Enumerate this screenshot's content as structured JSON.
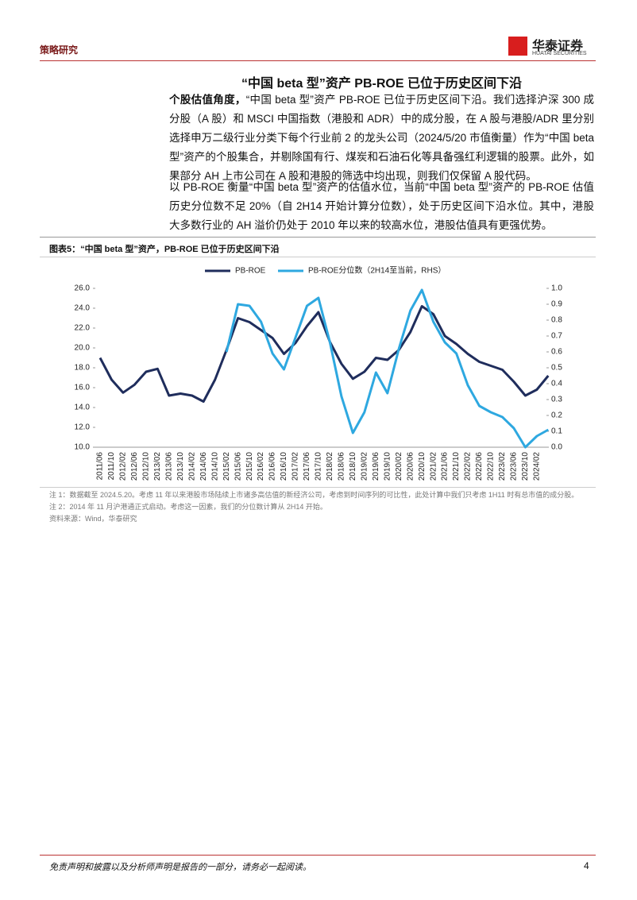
{
  "header": {
    "section": "策略研究",
    "logo_cn": "华泰证券",
    "logo_en": "HUATAI SECURITIES"
  },
  "heading": "“中国 beta 型”资产 PB-ROE 已位于历史区间下沿",
  "paragraphs": [
    {
      "lead": "个股估值角度，",
      "text": "“中国 beta 型”资产 PB-ROE 已位于历史区间下沿。我们选择沪深 300 成分股（A 股）和 MSCI 中国指数（港股和 ADR）中的成分股，在 A 股与港股/ADR 里分别选择申万二级行业分类下每个行业前 2 的龙头公司（2024/5/20 市值衡量）作为“中国 beta 型”资产的个股集合，并剔除国有行、煤炭和石油石化等具备强红利逻辑的股票。此外，如果部分 AH 上市公司在 A 股和港股的筛选中均出现，则我们仅保留 A 股代码。"
    },
    {
      "text": "以 PB-ROE 衡量“中国 beta 型”资产的估值水位，当前“中国 beta 型”资产的 PB-ROE 估值历史分位数不足 20%（自 2H14 开始计算分位数），处于历史区间下沿水位。其中，港股大多数行业的 AH 溢价仍处于 2010 年以来的较高水位，港股估值具有更强优势。"
    }
  ],
  "chart_data": {
    "type": "line",
    "title": "图表5：“中国 beta 型”资产，PB-ROE 已位于历史区间下沿",
    "categories": [
      "2011/06",
      "2011/10",
      "2012/02",
      "2012/06",
      "2012/10",
      "2013/02",
      "2013/06",
      "2013/10",
      "2014/02",
      "2014/06",
      "2014/10",
      "2015/02",
      "2015/06",
      "2015/10",
      "2016/02",
      "2016/06",
      "2016/10",
      "2017/02",
      "2017/06",
      "2017/10",
      "2018/02",
      "2018/06",
      "2018/10",
      "2019/02",
      "2019/06",
      "2019/10",
      "2020/02",
      "2020/06",
      "2020/10",
      "2021/02",
      "2021/06",
      "2021/10",
      "2022/02",
      "2022/06",
      "2022/10",
      "2023/02",
      "2023/06",
      "2023/10",
      "2024/02",
      null
    ],
    "series": [
      {
        "name": "PB-ROE",
        "color": "#1f2d5c",
        "values": [
          19.0,
          16.8,
          15.5,
          16.3,
          17.6,
          17.9,
          15.2,
          15.4,
          15.2,
          14.6,
          16.8,
          19.8,
          23.0,
          22.6,
          21.8,
          21.0,
          19.4,
          20.5,
          22.2,
          23.6,
          20.6,
          18.4,
          16.9,
          17.6,
          19.0,
          18.8,
          19.8,
          21.6,
          24.2,
          23.4,
          21.2,
          20.4,
          19.4,
          18.6,
          18.2,
          17.8,
          16.6,
          15.2,
          15.8,
          17.2
        ]
      },
      {
        "name": "PB-ROE分位数（2H14至当前，RHS）",
        "color": "#2ea8e0",
        "axis": "y2",
        "values": [
          null,
          null,
          null,
          null,
          null,
          null,
          null,
          null,
          null,
          null,
          null,
          0.6,
          0.9,
          0.89,
          0.79,
          0.59,
          0.49,
          0.69,
          0.89,
          0.94,
          0.66,
          0.32,
          0.09,
          0.22,
          0.47,
          0.34,
          0.62,
          0.86,
          0.99,
          0.79,
          0.66,
          0.59,
          0.39,
          0.26,
          0.22,
          0.19,
          0.12,
          0.0,
          0.07,
          0.11
        ]
      }
    ],
    "ylim": [
      10,
      26
    ],
    "yticks": [
      {
        "value": 10,
        "label": "10.0"
      },
      {
        "value": 12,
        "label": "12.0"
      },
      {
        "value": 14,
        "label": "14.0"
      },
      {
        "value": 16,
        "label": "16.0"
      },
      {
        "value": 18,
        "label": "18.0"
      },
      {
        "value": 20,
        "label": "20.0"
      },
      {
        "value": 22,
        "label": "22.0"
      },
      {
        "value": 24,
        "label": "24.0"
      },
      {
        "value": 26,
        "label": "26.0"
      }
    ],
    "y2lim": [
      0,
      1
    ],
    "y2ticks": [
      {
        "value": 0,
        "label": "0.0"
      },
      0.1,
      0.2,
      0.3,
      0.4,
      0.5,
      0.6,
      0.7,
      0.8,
      0.9,
      {
        "value": 1,
        "label": "1.0"
      }
    ],
    "grid": false,
    "legend": "top"
  },
  "notes": [
    "注 1：数据截至 2024.5.20。考虑 11 年以来港股市场陆续上市诸多高估值的新经济公司，考虑到时间序列的可比性，此处计算中我们只考虑 1H11 时有总市值的成分股。",
    "注 2：2014 年 11 月沪港通正式启动。考虑这一因素，我们的分位数计算从 2H14 开始。",
    "资料来源：Wind，华泰研究"
  ],
  "footer": {
    "disclaimer": "免责声明和披露以及分析师声明是报告的一部分，请务必一起阅读。",
    "page": "4"
  }
}
